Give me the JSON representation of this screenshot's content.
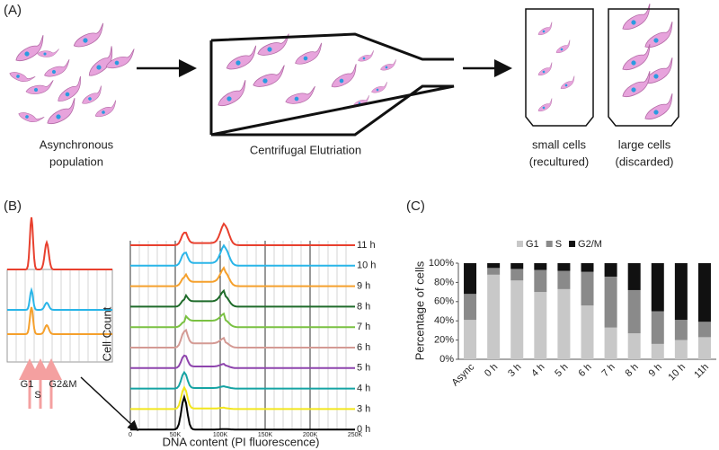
{
  "panel_a": {
    "label": "(A)",
    "population": [
      "Asynchronous",
      "population"
    ],
    "elutriation": "Centrifugal Elutriation",
    "small": [
      "small cells",
      "(recultured)"
    ],
    "large": [
      "large cells",
      "(discarded)"
    ]
  },
  "panel_b": {
    "label": "(B)",
    "y_axis_label": "Cell Count",
    "x_axis_label": "DNA content (PI fluorescence)",
    "x_tick_labels": [
      "0",
      "50K",
      "100K",
      "150K",
      "200K",
      "250K"
    ],
    "time_labels": [
      "11 h",
      "10 h",
      "9 h",
      "8 h",
      "7 h",
      "6 h",
      "5 h",
      "4 h",
      "3 h",
      "0 h"
    ],
    "phase_labels": [
      "G1",
      "S",
      "G2&M"
    ]
  },
  "chart_data": {
    "type": "bar",
    "stacked": true,
    "panel_label": "(C)",
    "y_axis_label": "Percentage of cells",
    "categories": [
      "Async",
      "0 h",
      "3 h",
      "4 h",
      "5 h",
      "6 h",
      "7 h",
      "8 h",
      "9 h",
      "10 h",
      "11h"
    ],
    "series": [
      {
        "name": "G1",
        "color": "#c8c8c8",
        "values": [
          41,
          88,
          82,
          70,
          73,
          56,
          33,
          27,
          16,
          20,
          23
        ]
      },
      {
        "name": "S",
        "color": "#8a8a8a",
        "values": [
          27,
          7,
          12,
          23,
          19,
          35,
          53,
          45,
          34,
          21,
          16
        ]
      },
      {
        "name": "G2/M",
        "color": "#111111",
        "values": [
          32,
          5,
          6,
          7,
          8,
          9,
          14,
          28,
          50,
          59,
          61
        ]
      }
    ],
    "ylim": [
      0,
      100
    ],
    "yticks": [
      {
        "value": 0,
        "label": "0%"
      },
      {
        "value": 20,
        "label": "20%"
      },
      {
        "value": 40,
        "label": "40%"
      },
      {
        "value": 60,
        "label": "60%"
      },
      {
        "value": 80,
        "label": "80%"
      },
      {
        "value": 100,
        "label": "100%"
      }
    ]
  }
}
